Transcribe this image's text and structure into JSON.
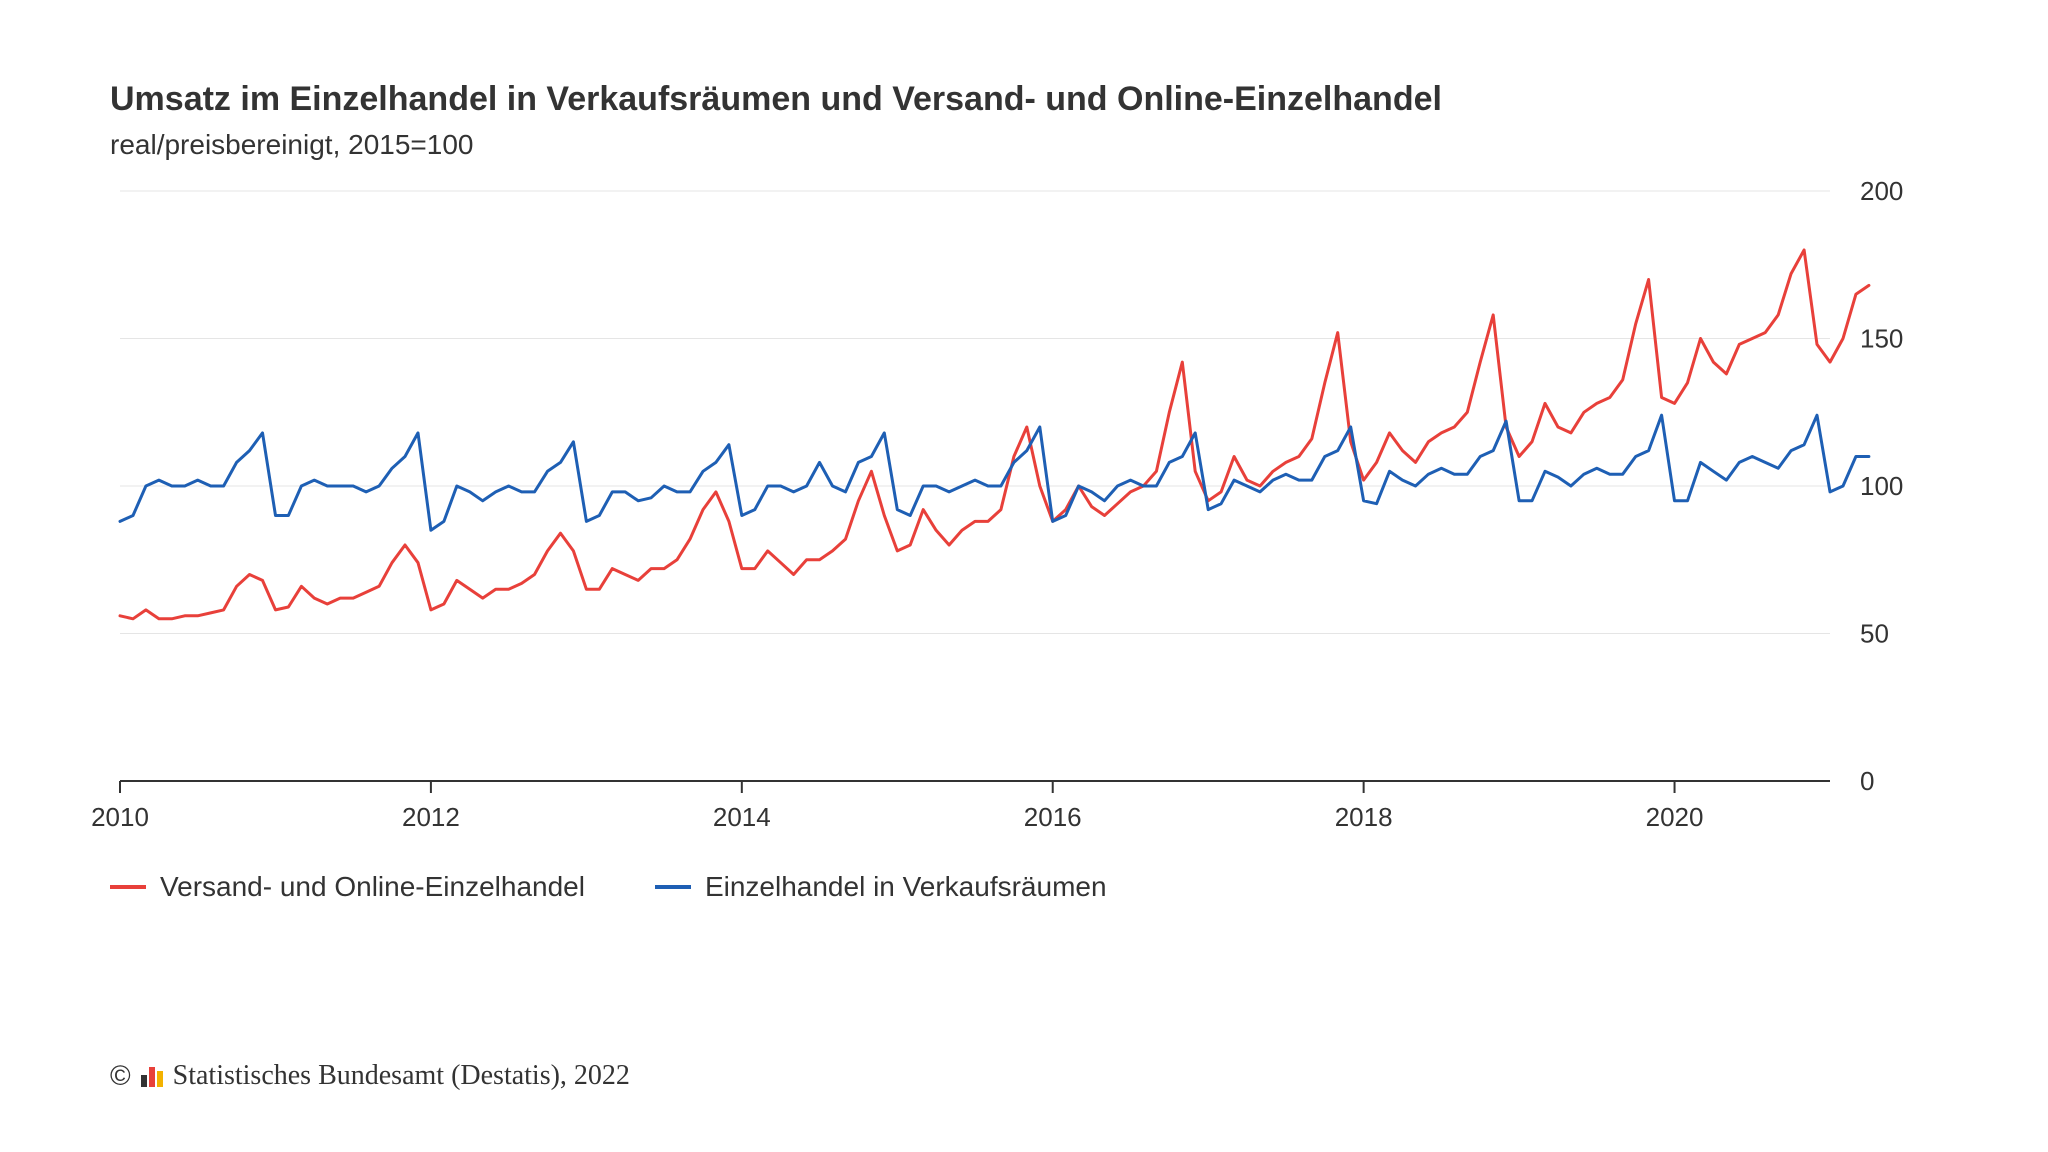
{
  "title": "Umsatz im Einzelhandel in Verkaufsräumen und Versand- und Online-Einzelhandel",
  "subtitle": "real/preisbereinigt, 2015=100",
  "chart": {
    "type": "line",
    "background_color": "#ffffff",
    "grid_color": "#e5e5e5",
    "axis_color": "#333333",
    "line_width": 3,
    "title_fontsize": 34,
    "subtitle_fontsize": 28,
    "tick_fontsize": 26,
    "x": {
      "min": 2010.0,
      "max": 2021.0,
      "ticks": [
        2010,
        2012,
        2014,
        2016,
        2018,
        2020
      ]
    },
    "y": {
      "min": 0,
      "max": 200,
      "ticks": [
        0,
        50,
        100,
        150,
        200
      ]
    },
    "series": [
      {
        "id": "online",
        "label": "Versand- und Online-Einzelhandel",
        "color": "#e8403a",
        "x_start": 2010.0,
        "x_step": 0.0833333,
        "values": [
          56,
          55,
          58,
          55,
          55,
          56,
          56,
          57,
          58,
          66,
          70,
          68,
          58,
          59,
          66,
          62,
          60,
          62,
          62,
          64,
          66,
          74,
          80,
          74,
          58,
          60,
          68,
          65,
          62,
          65,
          65,
          67,
          70,
          78,
          84,
          78,
          65,
          65,
          72,
          70,
          68,
          72,
          72,
          75,
          82,
          92,
          98,
          88,
          72,
          72,
          78,
          74,
          70,
          75,
          75,
          78,
          82,
          95,
          105,
          90,
          78,
          80,
          92,
          85,
          80,
          85,
          88,
          88,
          92,
          110,
          120,
          100,
          88,
          92,
          100,
          93,
          90,
          94,
          98,
          100,
          105,
          125,
          142,
          105,
          95,
          98,
          110,
          102,
          100,
          105,
          108,
          110,
          116,
          135,
          152,
          115,
          102,
          108,
          118,
          112,
          108,
          115,
          118,
          120,
          125,
          142,
          158,
          120,
          110,
          115,
          128,
          120,
          118,
          125,
          128,
          130,
          136,
          155,
          170,
          130,
          128,
          135,
          150,
          142,
          138,
          148,
          150,
          152,
          158,
          172,
          180,
          148,
          142,
          150,
          165,
          168
        ]
      },
      {
        "id": "store",
        "label": "Einzelhandel in Verkaufsräumen",
        "color": "#1e5fb4",
        "x_start": 2010.0,
        "x_step": 0.0833333,
        "values": [
          88,
          90,
          100,
          102,
          100,
          100,
          102,
          100,
          100,
          108,
          112,
          118,
          90,
          90,
          100,
          102,
          100,
          100,
          100,
          98,
          100,
          106,
          110,
          118,
          85,
          88,
          100,
          98,
          95,
          98,
          100,
          98,
          98,
          105,
          108,
          115,
          88,
          90,
          98,
          98,
          95,
          96,
          100,
          98,
          98,
          105,
          108,
          114,
          90,
          92,
          100,
          100,
          98,
          100,
          108,
          100,
          98,
          108,
          110,
          118,
          92,
          90,
          100,
          100,
          98,
          100,
          102,
          100,
          100,
          108,
          112,
          120,
          88,
          90,
          100,
          98,
          95,
          100,
          102,
          100,
          100,
          108,
          110,
          118,
          92,
          94,
          102,
          100,
          98,
          102,
          104,
          102,
          102,
          110,
          112,
          120,
          95,
          94,
          105,
          102,
          100,
          104,
          106,
          104,
          104,
          110,
          112,
          122,
          95,
          95,
          105,
          103,
          100,
          104,
          106,
          104,
          104,
          110,
          112,
          124,
          95,
          95,
          108,
          105,
          102,
          108,
          110,
          108,
          106,
          112,
          114,
          124,
          98,
          100,
          110,
          110
        ]
      }
    ]
  },
  "legend": {
    "items": [
      {
        "label": "Versand- und Online-Einzelhandel",
        "color": "#e8403a"
      },
      {
        "label": "Einzelhandel in Verkaufsräumen",
        "color": "#1e5fb4"
      }
    ]
  },
  "credit": {
    "copyright": "©",
    "text": "Statistisches Bundesamt (Destatis), 2022",
    "logo_colors": [
      "#333333",
      "#e8403a",
      "#f3b200"
    ]
  }
}
